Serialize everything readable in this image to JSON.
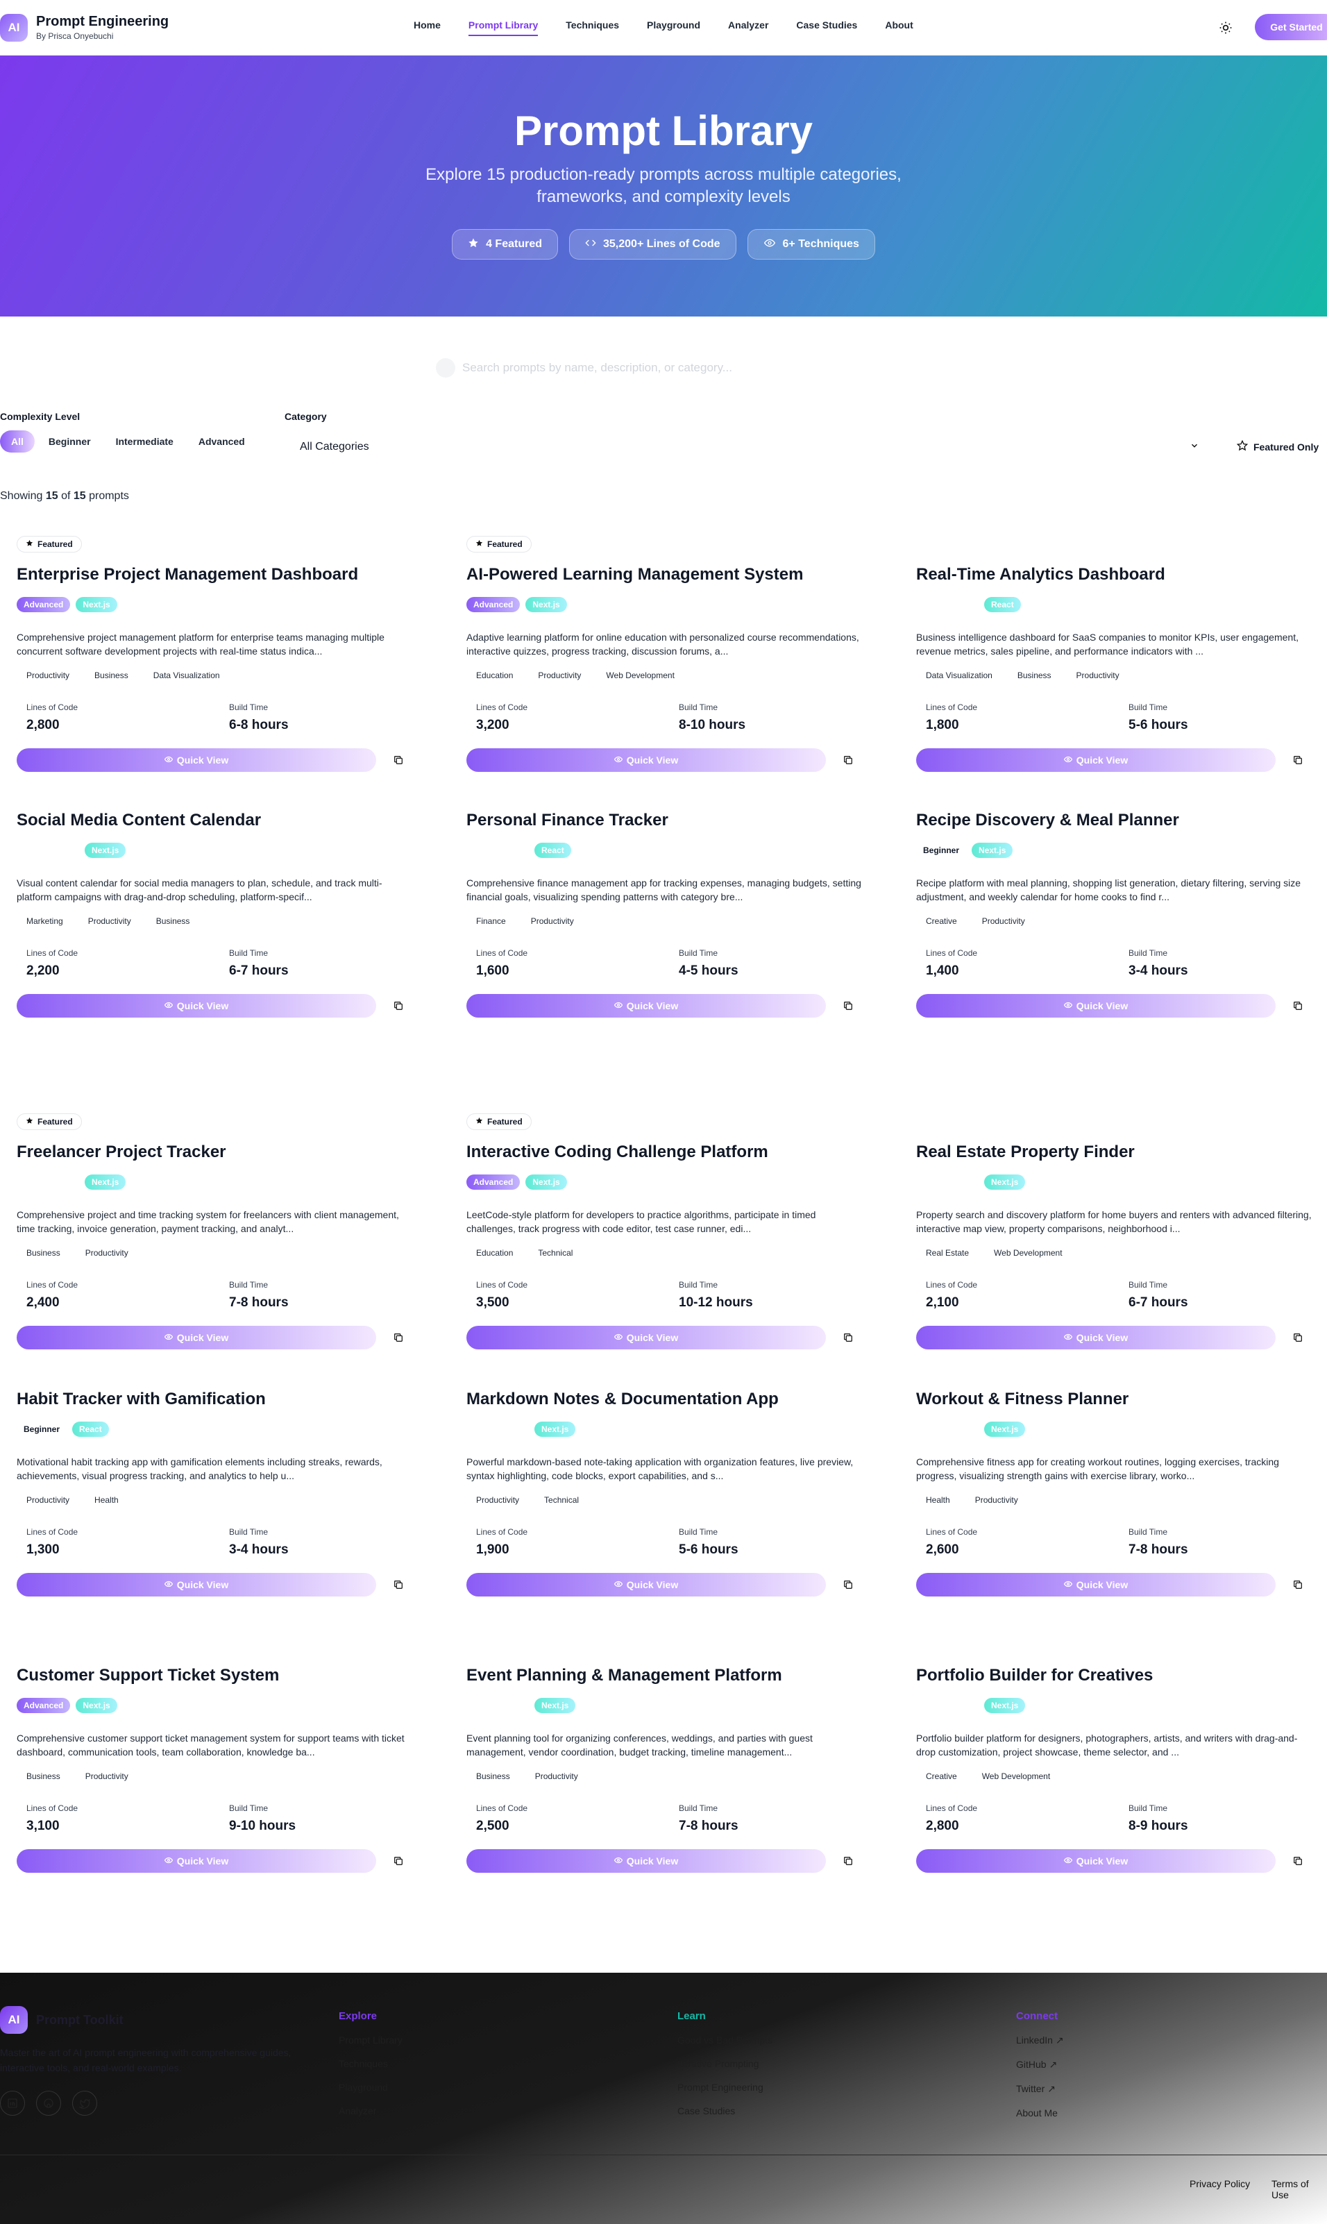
{
  "header": {
    "logo": "AI",
    "title": "Prompt Engineering",
    "subtitle": "By Prisca Onyebuchi",
    "nav": [
      "Home",
      "Prompt Library",
      "Techniques",
      "Playground",
      "Analyzer",
      "Case Studies",
      "About"
    ],
    "active_nav": "Prompt Library",
    "cta": "Get Started"
  },
  "hero": {
    "title": "Prompt Library",
    "subtitle": "Explore 15 production-ready prompts across multiple categories, frameworks, and complexity levels",
    "stats": [
      "4 Featured",
      "35,200+ Lines of Code",
      "6+ Techniques"
    ]
  },
  "search": {
    "placeholder": "Search prompts by name, description, or category..."
  },
  "filters": {
    "complexity_label": "Complexity Level",
    "complexity": [
      "All",
      "Beginner",
      "Intermediate",
      "Advanced"
    ],
    "complexity_active": "All",
    "category_label": "Category",
    "category_value": "All Categories",
    "featured_only": "Featured Only"
  },
  "showing": {
    "prefix": "Showing ",
    "shown": "15",
    "mid": " of ",
    "total": "15",
    "suffix": " prompts"
  },
  "card_labels": {
    "loc": "Lines of Code",
    "build": "Build Time",
    "quick_view": "Quick View",
    "featured": "Featured"
  },
  "cards": [
    {
      "title": "Enterprise Project Management Dashboard",
      "featured": true,
      "level": "Advanced",
      "framework": "Next.js",
      "desc": "Comprehensive project management platform for enterprise teams managing multiple concurrent software development projects with real-time status indica...",
      "cats": [
        "Productivity",
        "Business",
        "Data Visualization"
      ],
      "loc": "2,800",
      "build": "6-8 hours"
    },
    {
      "title": "AI-Powered Learning Management System",
      "featured": true,
      "level": "Advanced",
      "framework": "Next.js",
      "desc": "Adaptive learning platform for online education with personalized course recommendations, interactive quizzes, progress tracking, discussion forums, a...",
      "cats": [
        "Education",
        "Productivity",
        "Web Development"
      ],
      "loc": "3,200",
      "build": "8-10 hours"
    },
    {
      "title": "Real-Time Analytics Dashboard",
      "featured": false,
      "level": "",
      "framework": "React",
      "desc": "Business intelligence dashboard for SaaS companies to monitor KPIs, user engagement, revenue metrics, sales pipeline, and performance indicators with ...",
      "cats": [
        "Data Visualization",
        "Business",
        "Productivity"
      ],
      "loc": "1,800",
      "build": "5-6 hours"
    },
    {
      "title": "Social Media Content Calendar",
      "featured": false,
      "level": "",
      "framework": "Next.js",
      "desc": "Visual content calendar for social media managers to plan, schedule, and track multi-platform campaigns with drag-and-drop scheduling, platform-specif...",
      "cats": [
        "Marketing",
        "Productivity",
        "Business"
      ],
      "loc": "2,200",
      "build": "6-7 hours"
    },
    {
      "title": "Personal Finance Tracker",
      "featured": false,
      "level": "",
      "framework": "React",
      "desc": "Comprehensive finance management app for tracking expenses, managing budgets, setting financial goals, visualizing spending patterns with category bre...",
      "cats": [
        "Finance",
        "Productivity"
      ],
      "loc": "1,600",
      "build": "4-5 hours"
    },
    {
      "title": "Recipe Discovery & Meal Planner",
      "featured": false,
      "level": "Beginner",
      "framework": "Next.js",
      "desc": "Recipe platform with meal planning, shopping list generation, dietary filtering, serving size adjustment, and weekly calendar for home cooks to find r...",
      "cats": [
        "Creative",
        "Productivity"
      ],
      "loc": "1,400",
      "build": "3-4 hours"
    },
    {
      "title": "Freelancer Project Tracker",
      "featured": true,
      "level": "",
      "framework": "Next.js",
      "desc": "Comprehensive project and time tracking system for freelancers with client management, time tracking, invoice generation, payment tracking, and analyt...",
      "cats": [
        "Business",
        "Productivity"
      ],
      "loc": "2,400",
      "build": "7-8 hours"
    },
    {
      "title": "Interactive Coding Challenge Platform",
      "featured": true,
      "level": "Advanced",
      "framework": "Next.js",
      "desc": "LeetCode-style platform for developers to practice algorithms, participate in timed challenges, track progress with code editor, test case runner, edi...",
      "cats": [
        "Education",
        "Technical"
      ],
      "loc": "3,500",
      "build": "10-12 hours"
    },
    {
      "title": "Real Estate Property Finder",
      "featured": false,
      "level": "",
      "framework": "Next.js",
      "desc": "Property search and discovery platform for home buyers and renters with advanced filtering, interactive map view, property comparisons, neighborhood i...",
      "cats": [
        "Real Estate",
        "Web Development"
      ],
      "loc": "2,100",
      "build": "6-7 hours"
    },
    {
      "title": "Habit Tracker with Gamification",
      "featured": false,
      "level": "Beginner",
      "framework": "React",
      "desc": "Motivational habit tracking app with gamification elements including streaks, rewards, achievements, visual progress tracking, and analytics to help u...",
      "cats": [
        "Productivity",
        "Health"
      ],
      "loc": "1,300",
      "build": "3-4 hours"
    },
    {
      "title": "Markdown Notes & Documentation App",
      "featured": false,
      "level": "",
      "framework": "Next.js",
      "desc": "Powerful markdown-based note-taking application with organization features, live preview, syntax highlighting, code blocks, export capabilities, and s...",
      "cats": [
        "Productivity",
        "Technical"
      ],
      "loc": "1,900",
      "build": "5-6 hours"
    },
    {
      "title": "Workout & Fitness Planner",
      "featured": false,
      "level": "",
      "framework": "Next.js",
      "desc": "Comprehensive fitness app for creating workout routines, logging exercises, tracking progress, visualizing strength gains with exercise library, worko...",
      "cats": [
        "Health",
        "Productivity"
      ],
      "loc": "2,600",
      "build": "7-8 hours"
    },
    {
      "title": "Customer Support Ticket System",
      "featured": false,
      "level": "Advanced",
      "framework": "Next.js",
      "desc": "Comprehensive customer support ticket management system for support teams with ticket dashboard, communication tools, team collaboration, knowledge ba...",
      "cats": [
        "Business",
        "Productivity"
      ],
      "loc": "3,100",
      "build": "9-10 hours"
    },
    {
      "title": "Event Planning & Management Platform",
      "featured": false,
      "level": "",
      "framework": "Next.js",
      "desc": "Event planning tool for organizing conferences, weddings, and parties with guest management, vendor coordination, budget tracking, timeline management...",
      "cats": [
        "Business",
        "Productivity"
      ],
      "loc": "2,500",
      "build": "7-8 hours"
    },
    {
      "title": "Portfolio Builder for Creatives",
      "featured": false,
      "level": "",
      "framework": "Next.js",
      "desc": "Portfolio builder platform for designers, photographers, artists, and writers with drag-and-drop customization, project showcase, theme selector, and ...",
      "cats": [
        "Creative",
        "Web Development"
      ],
      "loc": "2,800",
      "build": "8-9 hours"
    }
  ],
  "footer": {
    "logo": "AI",
    "title": "Prompt Toolkit",
    "desc": "Master the art of AI prompt engineering with comprehensive guides, interactive tools, and real-world examples.",
    "cols": [
      {
        "head": "Explore",
        "links": [
          "Prompt Library",
          "Techniques",
          "Playground",
          "Analyzer"
        ]
      },
      {
        "head": "Learn",
        "links": [
          "Good vs Bad Prompts",
          "Iterative Prompting",
          "Prompt Engineering",
          "Case Studies"
        ]
      },
      {
        "head": "Connect",
        "links": [
          "LinkedIn ↗",
          "GitHub ↗",
          "Twitter ↗",
          "About Me"
        ]
      }
    ],
    "privacy": "Privacy Policy",
    "terms": "Terms of Use"
  },
  "colors": {
    "accent": "#7c3aed",
    "teal": "#14b8a6"
  }
}
